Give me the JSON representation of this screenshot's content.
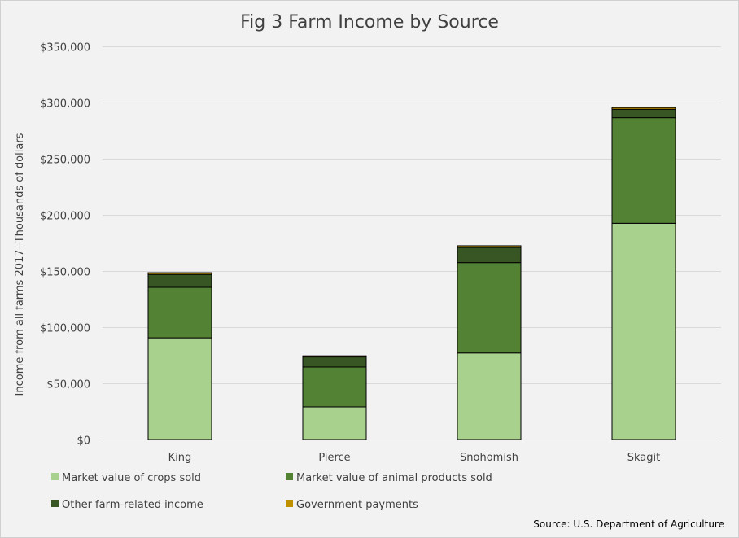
{
  "chart_data": {
    "type": "bar",
    "stacked": true,
    "title": "Fig 3 Farm Income by Source",
    "xlabel": "",
    "ylabel": "Income from all farms 2017--Thousands of dollars",
    "categories": [
      "King",
      "Pierce",
      "Snohomish",
      "Skagit"
    ],
    "series": [
      {
        "name": "Market value of crops sold",
        "color": "#a9d18e",
        "values": [
          90500,
          29000,
          77000,
          192500
        ]
      },
      {
        "name": "Market value of animal products sold",
        "color": "#548235",
        "values": [
          45000,
          35500,
          80500,
          94000
        ]
      },
      {
        "name": "Other farm-related income",
        "color": "#375623",
        "values": [
          11500,
          9000,
          13500,
          7500
        ]
      },
      {
        "name": "Government payments",
        "color": "#bf9000",
        "values": [
          1500,
          1000,
          1500,
          1500
        ]
      }
    ],
    "ylim": [
      0,
      350000
    ],
    "yticks": [
      0,
      50000,
      100000,
      150000,
      200000,
      250000,
      300000,
      350000
    ],
    "ytick_labels": [
      "$0",
      "$50,000",
      "$100,000",
      "$150,000",
      "$200,000",
      "$250,000",
      "$300,000",
      "$350,000"
    ],
    "grid": true,
    "legend_position": "bottom"
  },
  "source_note": "Source: U.S. Department of Agriculture"
}
